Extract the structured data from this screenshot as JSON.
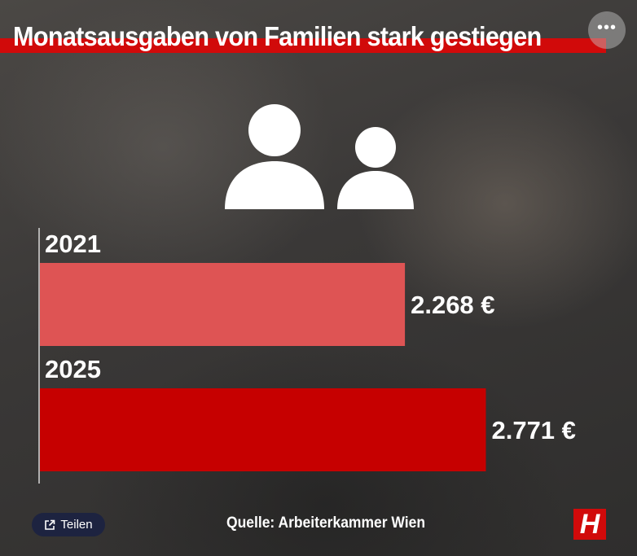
{
  "header": {
    "title": "Monatsausgaben von Familien stark gestiegen",
    "more_label": "•••"
  },
  "icons": {
    "people": "people-icon",
    "share": "share-icon",
    "more": "more-icon"
  },
  "colors": {
    "accent": "#d10a0a",
    "bar_2021": "#de5454",
    "bar_2025": "#c60000",
    "share_button": "#1d2340"
  },
  "chart_data": {
    "type": "bar",
    "orientation": "horizontal",
    "categories": [
      "2021",
      "2025"
    ],
    "values": [
      2268,
      2771
    ],
    "value_labels": [
      "2.268 €",
      "2.771 €"
    ],
    "unit": "€",
    "xlim": [
      0,
      3300
    ],
    "grid": false,
    "legend": "none"
  },
  "footer": {
    "share_label": "Teilen",
    "source": "Quelle: Arbeiterkammer Wien",
    "logo_letter": "H"
  }
}
